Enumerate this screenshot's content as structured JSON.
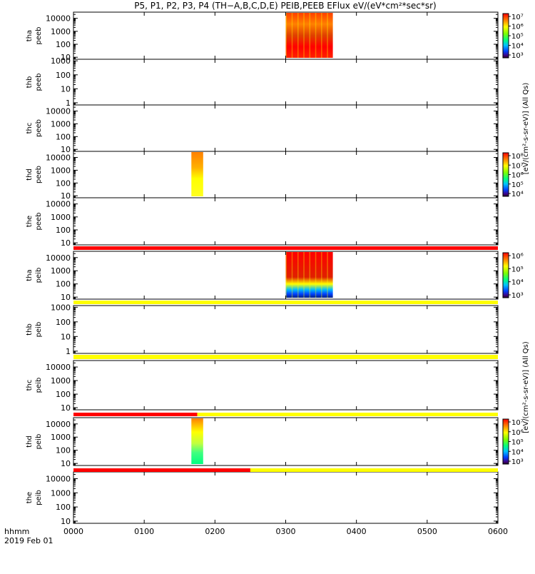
{
  "chart_data": {
    "type": "heatmap",
    "title": "P5, P1, P2, P3, P4 (TH−A,B,C,D,E) PEIB,PEEB EFlux eV/(eV*cm²*sec*sr)",
    "x_ticks": [
      "0000",
      "0100",
      "0200",
      "0300",
      "0400",
      "0500",
      "0600"
    ],
    "x_range": [
      "0000",
      "0600"
    ],
    "x_footer_label": "hhmm",
    "date_label": "2019 Feb 01",
    "panels": [
      {
        "probe": "tha",
        "dataset": "peeb",
        "y_ticks": [
          "10",
          "100",
          "1000",
          "10000"
        ],
        "y_range": [
          7,
          30000
        ],
        "spectrogram": [
          {
            "x_start": "0300",
            "x_end": "0340",
            "palette": "tha_peeb"
          }
        ],
        "colorbar": {
          "label": "[eV/(cm²-s-sr-eV)] (All Qs)",
          "ticks": [
            "10³",
            "10⁴",
            "10⁵",
            "10⁶",
            "10⁷"
          ]
        }
      },
      {
        "probe": "thb",
        "dataset": "peeb",
        "y_ticks": [
          "1",
          "10",
          "100",
          "1000"
        ],
        "y_range": [
          0.7,
          1300
        ],
        "spectrogram": [],
        "colorbar": {
          "label": "[eV/(cm²-s-sr-eV)] (All Qs)",
          "ticks": []
        }
      },
      {
        "probe": "thc",
        "dataset": "peeb",
        "y_ticks": [
          "10",
          "100",
          "1000",
          "10000"
        ],
        "y_range": [
          7,
          30000
        ],
        "spectrogram": [],
        "colorbar": {
          "label": "[eV/(cm²-s-sr-eV)] (All Qs)",
          "ticks": []
        }
      },
      {
        "probe": "thd",
        "dataset": "peeb",
        "y_ticks": [
          "10",
          "100",
          "1000",
          "10000"
        ],
        "y_range": [
          7,
          30000
        ],
        "spectrogram": [
          {
            "x_start": "0140",
            "x_end": "0150",
            "palette": "thd_peeb"
          }
        ],
        "colorbar": {
          "label": "[eV/(cm²-s-sr-eV)] (All Qs)",
          "ticks": [
            "10⁴",
            "10⁵",
            "10⁶",
            "10⁷",
            "10⁸"
          ]
        }
      },
      {
        "probe": "the",
        "dataset": "peeb",
        "y_ticks": [
          "10",
          "100",
          "1000",
          "10000"
        ],
        "y_range": [
          7,
          30000
        ],
        "spectrogram": [],
        "colorbar": {
          "label": "[eV/(cm²-s-sr-eV)] (All Qs)",
          "ticks": []
        }
      },
      {
        "probe": "tha",
        "dataset": "peib",
        "y_ticks": [
          "10",
          "100",
          "1000",
          "10000"
        ],
        "y_range": [
          7,
          30000
        ],
        "spectrogram": [
          {
            "x_start": "0300",
            "x_end": "0340",
            "palette": "tha_peib"
          }
        ],
        "colorbar": {
          "label": "[eV/(cm²-s-sr-eV)] (All Qs)",
          "ticks": [
            "10³",
            "10⁴",
            "10⁵",
            "10⁶"
          ]
        }
      },
      {
        "probe": "thb",
        "dataset": "peib",
        "y_ticks": [
          "1",
          "10",
          "100",
          "1000"
        ],
        "y_range": [
          0.7,
          1300
        ],
        "spectrogram": [],
        "colorbar": {
          "label": "[eV/(cm²-s-sr-eV)] (All Qs)",
          "ticks": []
        }
      },
      {
        "probe": "thc",
        "dataset": "peib",
        "y_ticks": [
          "10",
          "100",
          "1000",
          "10000"
        ],
        "y_range": [
          7,
          30000
        ],
        "spectrogram": [],
        "colorbar": {
          "label": "[eV/(cm²-s-sr-eV)] (All Qs)",
          "ticks": []
        }
      },
      {
        "probe": "thd",
        "dataset": "peib",
        "y_ticks": [
          "10",
          "100",
          "1000",
          "10000"
        ],
        "y_range": [
          7,
          30000
        ],
        "spectrogram": [
          {
            "x_start": "0140",
            "x_end": "0150",
            "palette": "thd_peib"
          }
        ],
        "colorbar": {
          "label": "[eV/(cm²-s-sr-eV)] (All Qs)",
          "ticks": [
            "10³",
            "10⁴",
            "10⁵",
            "10⁶",
            "10⁷"
          ]
        }
      },
      {
        "probe": "the",
        "dataset": "peib",
        "y_ticks": [
          "10",
          "100",
          "1000",
          "10000"
        ],
        "y_range": [
          7,
          30000
        ],
        "spectrogram": [],
        "colorbar": {
          "label": "[eV/(cm²-s-sr-eV)] (All Qs)",
          "ticks": []
        }
      }
    ],
    "status_bars": [
      {
        "after_panel": 4,
        "segments": [
          {
            "x_start": "0000",
            "x_end": "0600",
            "color": "#ff0000"
          }
        ]
      },
      {
        "after_panel": 5,
        "segments": [
          {
            "x_start": "0000",
            "x_end": "0600",
            "color": "#ffff00"
          }
        ]
      },
      {
        "after_panel": 6,
        "segments": [
          {
            "x_start": "0000",
            "x_end": "0600",
            "color": "#ffff00"
          }
        ]
      },
      {
        "after_panel": 7,
        "segments": [
          {
            "x_start": "0000",
            "x_end": "0145",
            "color": "#ff0000"
          },
          {
            "x_start": "0145",
            "x_end": "0600",
            "color": "#ffff00"
          }
        ]
      },
      {
        "after_panel": 8,
        "segments": [
          {
            "x_start": "0000",
            "x_end": "0230",
            "color": "#ff0000"
          },
          {
            "x_start": "0230",
            "x_end": "0600",
            "color": "#ffff00"
          }
        ]
      }
    ],
    "colors": {
      "axis": "#000000",
      "background": "#ffffff"
    }
  }
}
